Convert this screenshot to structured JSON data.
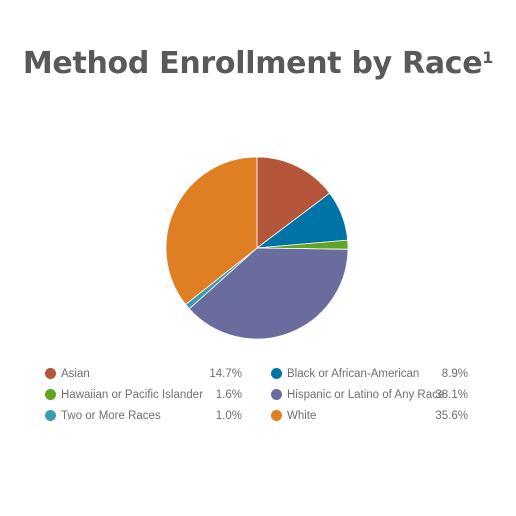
{
  "chart_data": {
    "type": "pie",
    "title": "Method Enrollment by Race",
    "title_footnote": "1",
    "legend_position": "bottom",
    "slices": [
      {
        "label": "Asian",
        "value": 14.7,
        "display": "14.7%",
        "color": "#b5553a"
      },
      {
        "label": "Black or African-American",
        "value": 8.9,
        "display": "8.9%",
        "color": "#0073a6"
      },
      {
        "label": "Hawaiian or Pacific Islander",
        "value": 1.6,
        "display": "1.6%",
        "color": "#5ea522"
      },
      {
        "label": "Hispanic or Latino of Any Race",
        "value": 38.1,
        "display": "38.1%",
        "color": "#6b6c9e"
      },
      {
        "label": "Two or More Races",
        "value": 1.0,
        "display": "1.0%",
        "color": "#3f9bb1"
      },
      {
        "label": "White",
        "value": 35.6,
        "display": "35.6%",
        "color": "#e07e24"
      }
    ]
  }
}
